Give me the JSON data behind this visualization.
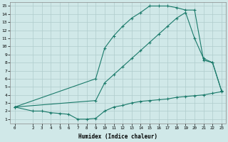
{
  "line1_x": [
    0,
    2,
    3,
    4,
    5,
    6,
    7,
    8,
    9,
    10,
    11,
    12,
    13,
    14,
    15,
    16,
    17,
    18,
    19,
    20,
    21,
    22,
    23
  ],
  "line1_y": [
    2.5,
    2.0,
    2.0,
    1.8,
    1.7,
    1.6,
    1.0,
    1.0,
    1.1,
    2.0,
    2.5,
    2.7,
    3.0,
    3.2,
    3.3,
    3.4,
    3.5,
    3.7,
    3.8,
    3.9,
    4.0,
    4.2,
    4.4
  ],
  "line2_x": [
    0,
    9,
    10,
    11,
    12,
    13,
    14,
    15,
    16,
    17,
    18,
    19,
    20,
    21,
    22,
    23
  ],
  "line2_y": [
    2.5,
    3.3,
    5.5,
    6.5,
    7.5,
    8.5,
    9.5,
    10.5,
    11.5,
    12.5,
    13.5,
    14.2,
    11.0,
    8.5,
    8.0,
    4.5
  ],
  "line3_x": [
    0,
    9,
    10,
    11,
    12,
    13,
    14,
    15,
    16,
    17,
    18,
    19,
    20,
    21,
    22,
    23
  ],
  "line3_y": [
    2.5,
    6.0,
    9.8,
    11.3,
    12.5,
    13.5,
    14.2,
    15.0,
    15.0,
    15.0,
    14.8,
    14.5,
    14.5,
    8.3,
    8.0,
    4.5
  ],
  "line_color": "#1a7a6a",
  "marker": "+",
  "bg_color": "#d0e8e8",
  "grid_color": "#b0cccc",
  "xlabel": "Humidex (Indice chaleur)",
  "ylim": [
    0.5,
    15.5
  ],
  "xlim": [
    -0.5,
    23.5
  ],
  "yticks": [
    1,
    2,
    3,
    4,
    5,
    6,
    7,
    8,
    9,
    10,
    11,
    12,
    13,
    14,
    15
  ],
  "xticks": [
    0,
    2,
    3,
    4,
    5,
    6,
    7,
    8,
    9,
    10,
    11,
    12,
    13,
    14,
    15,
    16,
    17,
    18,
    19,
    20,
    21,
    22,
    23
  ],
  "xtick_labels": [
    "0",
    "2",
    "3",
    "4",
    "5",
    "6",
    "7",
    "8",
    "9",
    "10",
    "11",
    "12",
    "13",
    "14",
    "15",
    "16",
    "17",
    "18",
    "19",
    "20",
    "21",
    "22",
    "23"
  ]
}
